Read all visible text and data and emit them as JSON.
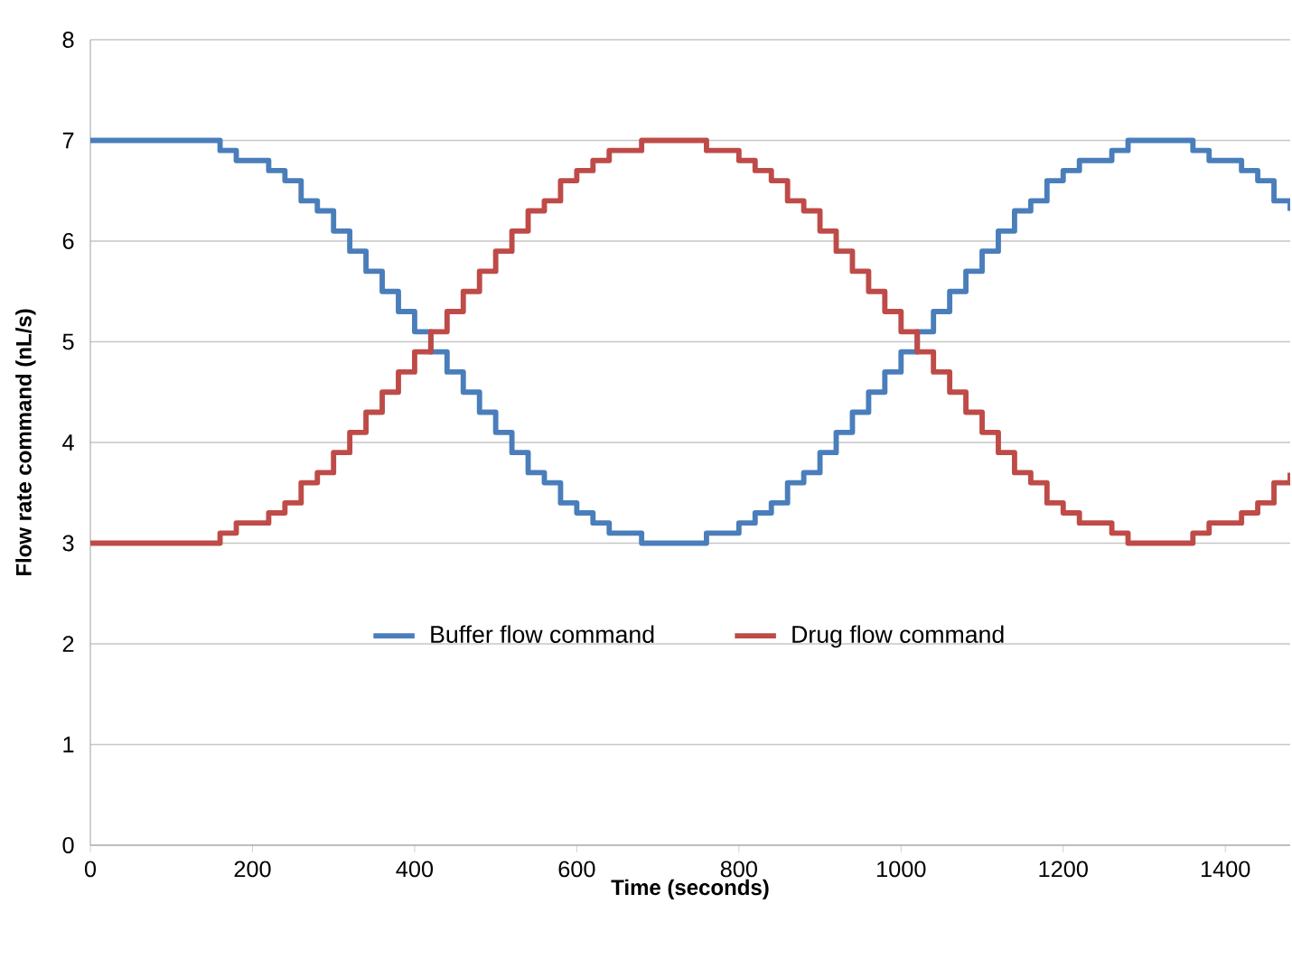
{
  "chart_data": {
    "type": "step",
    "xlabel": "Time (seconds)",
    "ylabel": "Flow rate command (nL/s)",
    "xlim": [
      0,
      1480
    ],
    "ylim": [
      0,
      8
    ],
    "xticks": [
      0,
      200,
      400,
      600,
      800,
      1000,
      1200,
      1400
    ],
    "yticks": [
      0,
      1,
      2,
      3,
      4,
      5,
      6,
      7,
      8
    ],
    "grid": "y",
    "legend": "center",
    "marker": "none",
    "line_style": "solid",
    "x": [
      0,
      160,
      180,
      200,
      220,
      240,
      260,
      280,
      300,
      320,
      340,
      360,
      380,
      400,
      420,
      440,
      460,
      480,
      500,
      520,
      540,
      560,
      580,
      600,
      620,
      640,
      660,
      680,
      760,
      780,
      800,
      820,
      840,
      860,
      880,
      900,
      920,
      940,
      960,
      980,
      1000,
      1020,
      1040,
      1060,
      1080,
      1100,
      1120,
      1140,
      1160,
      1180,
      1200,
      1220,
      1240,
      1260,
      1280,
      1360,
      1380,
      1400,
      1420,
      1440,
      1460,
      1480
    ],
    "series": [
      {
        "name": "Buffer flow command",
        "color": "#4a7ebb",
        "values": [
          7.0,
          6.9,
          6.8,
          6.8,
          6.7,
          6.6,
          6.4,
          6.3,
          6.1,
          5.9,
          5.7,
          5.5,
          5.3,
          5.1,
          4.9,
          4.7,
          4.5,
          4.3,
          4.1,
          3.9,
          3.7,
          3.6,
          3.4,
          3.3,
          3.2,
          3.1,
          3.1,
          3.0,
          3.1,
          3.1,
          3.2,
          3.3,
          3.4,
          3.6,
          3.7,
          3.9,
          4.1,
          4.3,
          4.5,
          4.7,
          4.9,
          5.1,
          5.3,
          5.5,
          5.7,
          5.9,
          6.1,
          6.3,
          6.4,
          6.6,
          6.7,
          6.8,
          6.8,
          6.9,
          7.0,
          6.9,
          6.8,
          6.8,
          6.7,
          6.6,
          6.4,
          6.3
        ]
      },
      {
        "name": "Drug flow command",
        "color": "#be4b48",
        "values": [
          3.0,
          3.1,
          3.2,
          3.2,
          3.3,
          3.4,
          3.6,
          3.7,
          3.9,
          4.1,
          4.3,
          4.5,
          4.7,
          4.9,
          5.1,
          5.3,
          5.5,
          5.7,
          5.9,
          6.1,
          6.3,
          6.4,
          6.6,
          6.7,
          6.8,
          6.9,
          6.9,
          7.0,
          6.9,
          6.9,
          6.8,
          6.7,
          6.6,
          6.4,
          6.3,
          6.1,
          5.9,
          5.7,
          5.5,
          5.3,
          5.1,
          4.9,
          4.7,
          4.5,
          4.3,
          4.1,
          3.9,
          3.7,
          3.6,
          3.4,
          3.3,
          3.2,
          3.2,
          3.1,
          3.0,
          3.1,
          3.2,
          3.2,
          3.3,
          3.4,
          3.6,
          3.7
        ]
      }
    ]
  }
}
